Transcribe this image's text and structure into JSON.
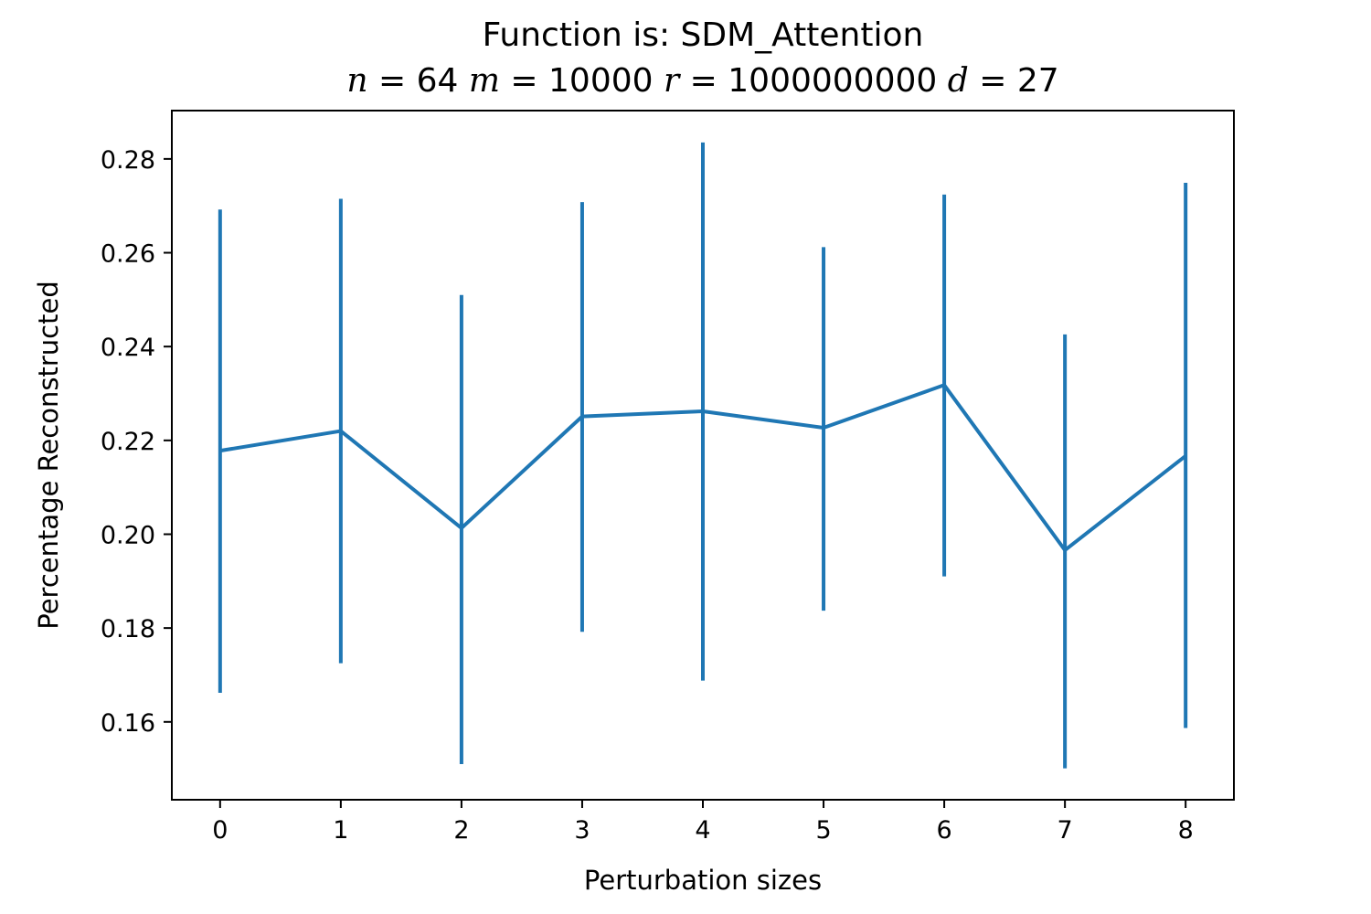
{
  "chart_data": {
    "type": "line",
    "title": "Function is: SDM_Attention",
    "subtitle_parts": [
      {
        "text": "n",
        "italic": true
      },
      {
        "text": " = 64 ",
        "italic": false
      },
      {
        "text": "m",
        "italic": true
      },
      {
        "text": " = 10000 ",
        "italic": false
      },
      {
        "text": "r",
        "italic": true
      },
      {
        "text": " = 1000000000 ",
        "italic": false
      },
      {
        "text": "d",
        "italic": true
      },
      {
        "text": " = 27",
        "italic": false
      }
    ],
    "xlabel": "Perturbation sizes",
    "ylabel": "Percentage Reconstructed",
    "x": [
      0,
      1,
      2,
      3,
      4,
      5,
      6,
      7,
      8
    ],
    "y": [
      0.2178,
      0.222,
      0.2013,
      0.2251,
      0.2262,
      0.2227,
      0.2318,
      0.1966,
      0.2167
    ],
    "y_err_low": [
      0.1662,
      0.1725,
      0.151,
      0.1792,
      0.1688,
      0.1837,
      0.191,
      0.1501,
      0.1587
    ],
    "y_err_high": [
      0.2692,
      0.2715,
      0.251,
      0.2708,
      0.2835,
      0.2612,
      0.2724,
      0.2426,
      0.2749
    ],
    "xlim": [
      -0.4,
      8.4
    ],
    "ylim": [
      0.1434,
      0.2903
    ],
    "xticks": [
      "0",
      "1",
      "2",
      "3",
      "4",
      "5",
      "6",
      "7",
      "8"
    ],
    "yticks": [
      0.16,
      0.18,
      0.2,
      0.22,
      0.24,
      0.26,
      0.28
    ],
    "ytick_labels": [
      "0.16",
      "0.18",
      "0.20",
      "0.22",
      "0.24",
      "0.26",
      "0.28"
    ],
    "grid": false,
    "series_color": "#1f77b4"
  }
}
